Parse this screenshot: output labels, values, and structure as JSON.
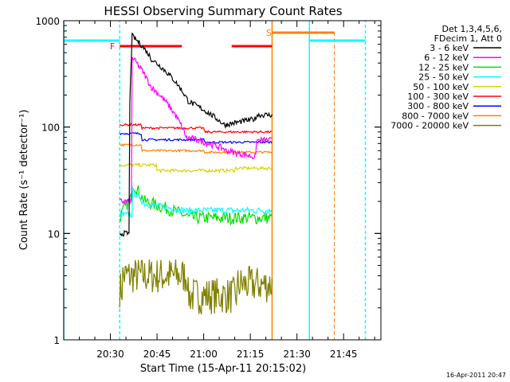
{
  "chart_data": {
    "type": "line",
    "title": "HESSI Observing Summary Count Rates",
    "xlabel": "Start Time (15-Apr-11 20:15:02)",
    "ylabel": "Count Rate (s⁻¹ detector⁻¹)",
    "y_scale": "log",
    "ylim": [
      1,
      1000
    ],
    "xlim_minutes_after_20_15": [
      0,
      102
    ],
    "x_tick_labels": [
      "20:30",
      "20:45",
      "21:00",
      "21:15",
      "21:30",
      "21:45"
    ],
    "y_tick_labels": [
      "1",
      "10",
      "100",
      "1000"
    ],
    "grid": false,
    "legend_position": "right",
    "legend_header": [
      "Det 1,3,4,5,6,",
      "FDecim 1, Att 0"
    ],
    "series": [
      {
        "name": "3 - 6 keV",
        "color": "#000000"
      },
      {
        "name": "6 - 12 keV",
        "color": "#ff00ff"
      },
      {
        "name": "12 - 25 keV",
        "color": "#00e000"
      },
      {
        "name": "25 - 50 keV",
        "color": "#00ffff"
      },
      {
        "name": "50 - 100 keV",
        "color": "#d4d400"
      },
      {
        "name": "100 - 300 keV",
        "color": "#ff0000"
      },
      {
        "name": "300 - 800 keV",
        "color": "#0000ff"
      },
      {
        "name": "800 - 7000 keV",
        "color": "#ff8000"
      },
      {
        "name": "7000 - 20000 keV",
        "color": "#808000"
      }
    ],
    "flags": [
      {
        "label": "F",
        "color": "#ff0000",
        "start": "20:33",
        "end": "20:53"
      },
      {
        "label": "",
        "color": "#ff0000",
        "start": "21:09",
        "end": "21:22"
      },
      {
        "label": "S",
        "color": "#ff8000",
        "start": "21:22",
        "end": "21:32"
      },
      {
        "label": "",
        "color": "#ff8000",
        "start": "21:32",
        "end": "21:42"
      }
    ],
    "night_boundaries_cyan": [
      "20:15",
      "20:33",
      "21:34",
      "21:52"
    ],
    "saa_boundaries_orange": [
      "21:22",
      "21:42"
    ]
  },
  "footer_timestamp": "16-Apr-2011 20:47"
}
